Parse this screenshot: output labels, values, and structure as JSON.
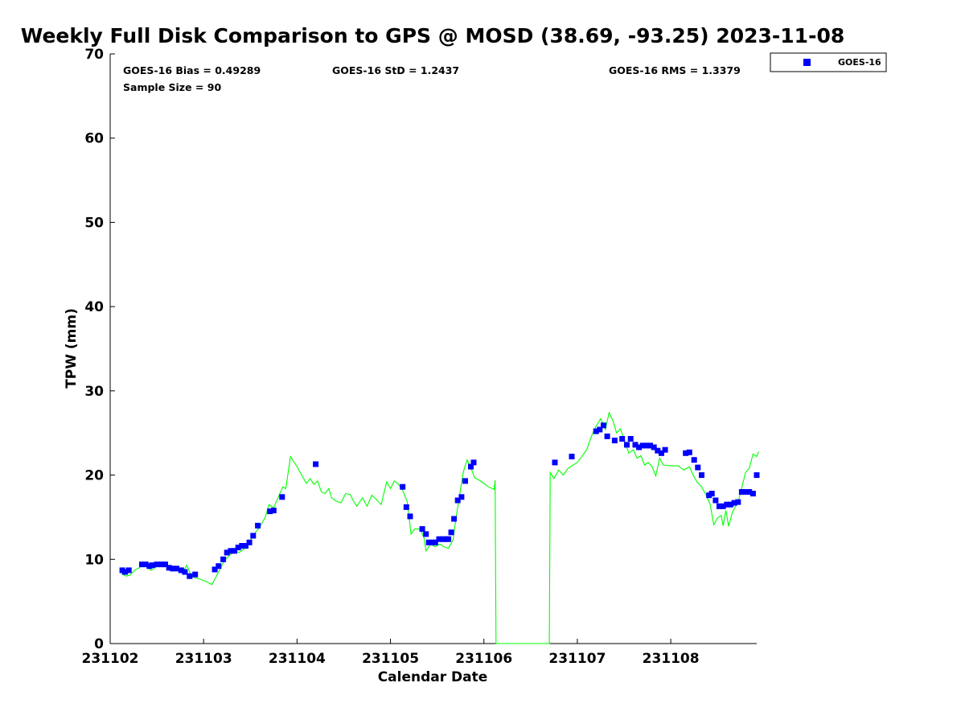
{
  "chart_data": {
    "type": "scatter",
    "title": "Weekly Full Disk Comparison to GPS @ MOSD (38.69, -93.25) 2023-11-08",
    "xlabel": "Calendar Date",
    "ylabel": "TPW (mm)",
    "xlim": [
      231102,
      231108.92
    ],
    "ylim": [
      0,
      70
    ],
    "x_ticks": [
      "231102",
      "231103",
      "231104",
      "231105",
      "231106",
      "231107",
      "231108"
    ],
    "y_ticks": [
      "0",
      "10",
      "20",
      "30",
      "40",
      "50",
      "60",
      "70"
    ],
    "grid": false,
    "legend_position": "outside-top-right",
    "stats": {
      "bias": "GOES-16 Bias = 0.49289",
      "std": "GOES-16 StD = 1.2437",
      "rms": "GOES-16 RMS = 1.3379",
      "sample": "Sample Size = 90"
    },
    "colors": {
      "scatter": "#0000ff",
      "line": "#00ff00"
    },
    "series": [
      {
        "name": "GOES-16",
        "kind": "scatter",
        "points": [
          [
            231102.13,
            8.7
          ],
          [
            231102.16,
            8.5
          ],
          [
            231102.2,
            8.7
          ],
          [
            231102.34,
            9.4
          ],
          [
            231102.38,
            9.4
          ],
          [
            231102.42,
            9.2
          ],
          [
            231102.45,
            9.3
          ],
          [
            231102.5,
            9.4
          ],
          [
            231102.55,
            9.4
          ],
          [
            231102.59,
            9.4
          ],
          [
            231102.63,
            9.0
          ],
          [
            231102.67,
            8.9
          ],
          [
            231102.71,
            8.9
          ],
          [
            231102.76,
            8.7
          ],
          [
            231102.8,
            8.5
          ],
          [
            231102.85,
            8.0
          ],
          [
            231102.91,
            8.2
          ],
          [
            231103.12,
            8.8
          ],
          [
            231103.16,
            9.2
          ],
          [
            231103.21,
            10.0
          ],
          [
            231103.25,
            10.8
          ],
          [
            231103.29,
            11.0
          ],
          [
            231103.33,
            11.0
          ],
          [
            231103.37,
            11.4
          ],
          [
            231103.41,
            11.6
          ],
          [
            231103.45,
            11.6
          ],
          [
            231103.49,
            12.0
          ],
          [
            231103.53,
            12.8
          ],
          [
            231103.58,
            14.0
          ],
          [
            231103.71,
            15.7
          ],
          [
            231103.75,
            15.8
          ],
          [
            231103.84,
            17.4
          ],
          [
            231104.2,
            21.3
          ],
          [
            231105.13,
            18.6
          ],
          [
            231105.17,
            16.2
          ],
          [
            231105.21,
            15.1
          ],
          [
            231105.34,
            13.6
          ],
          [
            231105.38,
            13.0
          ],
          [
            231105.41,
            12.0
          ],
          [
            231105.45,
            12.0
          ],
          [
            231105.48,
            12.0
          ],
          [
            231105.52,
            12.4
          ],
          [
            231105.56,
            12.4
          ],
          [
            231105.59,
            12.4
          ],
          [
            231105.62,
            12.4
          ],
          [
            231105.65,
            13.2
          ],
          [
            231105.68,
            14.8
          ],
          [
            231105.72,
            17.0
          ],
          [
            231105.76,
            17.4
          ],
          [
            231105.8,
            19.3
          ],
          [
            231105.86,
            21.0
          ],
          [
            231105.89,
            21.5
          ],
          [
            231106.76,
            21.5
          ],
          [
            231106.94,
            22.2
          ],
          [
            231107.2,
            25.2
          ],
          [
            231107.24,
            25.4
          ],
          [
            231107.28,
            25.9
          ],
          [
            231107.32,
            24.6
          ],
          [
            231107.4,
            24.1
          ],
          [
            231107.48,
            24.3
          ],
          [
            231107.53,
            23.6
          ],
          [
            231107.57,
            24.3
          ],
          [
            231107.62,
            23.6
          ],
          [
            231107.66,
            23.3
          ],
          [
            231107.7,
            23.5
          ],
          [
            231107.74,
            23.5
          ],
          [
            231107.78,
            23.5
          ],
          [
            231107.82,
            23.3
          ],
          [
            231107.86,
            22.9
          ],
          [
            231107.9,
            22.6
          ],
          [
            231107.94,
            23.0
          ],
          [
            231108.16,
            22.6
          ],
          [
            231108.2,
            22.7
          ],
          [
            231108.25,
            21.8
          ],
          [
            231108.29,
            20.9
          ],
          [
            231108.33,
            20.0
          ],
          [
            231108.41,
            17.6
          ],
          [
            231108.44,
            17.8
          ],
          [
            231108.48,
            17.0
          ],
          [
            231108.52,
            16.3
          ],
          [
            231108.56,
            16.3
          ],
          [
            231108.6,
            16.5
          ],
          [
            231108.64,
            16.5
          ],
          [
            231108.68,
            16.7
          ],
          [
            231108.72,
            16.8
          ],
          [
            231108.76,
            18.0
          ],
          [
            231108.8,
            18.0
          ],
          [
            231108.84,
            18.0
          ],
          [
            231108.88,
            17.8
          ],
          [
            231108.92,
            20.0
          ]
        ]
      },
      {
        "kind": "line",
        "points": [
          [
            231102.12,
            8.3
          ],
          [
            231102.17,
            8.0
          ],
          [
            231102.21,
            8.1
          ],
          [
            231102.26,
            8.7
          ],
          [
            231102.31,
            9.0
          ],
          [
            231102.36,
            9.4
          ],
          [
            231102.4,
            9.0
          ],
          [
            231102.44,
            8.7
          ],
          [
            231102.48,
            9.0
          ],
          [
            231102.53,
            9.3
          ],
          [
            231102.57,
            9.2
          ],
          [
            231102.61,
            9.4
          ],
          [
            231102.65,
            9.0
          ],
          [
            231102.7,
            8.8
          ],
          [
            231102.75,
            8.7
          ],
          [
            231102.79,
            8.7
          ],
          [
            231102.82,
            9.3
          ],
          [
            231102.85,
            8.5
          ],
          [
            231102.88,
            7.9
          ],
          [
            231102.95,
            7.7
          ],
          [
            231103.02,
            7.4
          ],
          [
            231103.09,
            7.0
          ],
          [
            231103.16,
            8.5
          ],
          [
            231103.22,
            9.8
          ],
          [
            231103.28,
            10.5
          ],
          [
            231103.33,
            11.0
          ],
          [
            231103.38,
            10.8
          ],
          [
            231103.44,
            11.3
          ],
          [
            231103.48,
            11.9
          ],
          [
            231103.54,
            13.0
          ],
          [
            231103.6,
            13.8
          ],
          [
            231103.66,
            15.0
          ],
          [
            231103.7,
            16.5
          ],
          [
            231103.75,
            16.1
          ],
          [
            231103.8,
            17.4
          ],
          [
            231103.85,
            18.6
          ],
          [
            231103.88,
            18.4
          ],
          [
            231103.93,
            22.2
          ],
          [
            231104.0,
            21.0
          ],
          [
            231104.05,
            20.0
          ],
          [
            231104.1,
            19.0
          ],
          [
            231104.14,
            19.6
          ],
          [
            231104.18,
            18.9
          ],
          [
            231104.22,
            19.3
          ],
          [
            231104.26,
            18.0
          ],
          [
            231104.3,
            17.8
          ],
          [
            231104.34,
            18.4
          ],
          [
            231104.37,
            17.3
          ],
          [
            231104.42,
            16.9
          ],
          [
            231104.47,
            16.7
          ],
          [
            231104.52,
            17.8
          ],
          [
            231104.57,
            17.7
          ],
          [
            231104.6,
            17.0
          ],
          [
            231104.64,
            16.3
          ],
          [
            231104.7,
            17.3
          ],
          [
            231104.75,
            16.3
          ],
          [
            231104.8,
            17.6
          ],
          [
            231104.84,
            17.2
          ],
          [
            231104.9,
            16.5
          ],
          [
            231104.96,
            19.2
          ],
          [
            231105.0,
            18.4
          ],
          [
            231105.04,
            19.3
          ],
          [
            231105.08,
            19.0
          ],
          [
            231105.13,
            18.2
          ],
          [
            231105.18,
            16.8
          ],
          [
            231105.22,
            13.0
          ],
          [
            231105.26,
            13.6
          ],
          [
            231105.32,
            13.6
          ],
          [
            231105.36,
            12.5
          ],
          [
            231105.38,
            11.0
          ],
          [
            231105.43,
            11.8
          ],
          [
            231105.48,
            11.5
          ],
          [
            231105.53,
            11.8
          ],
          [
            231105.57,
            11.5
          ],
          [
            231105.62,
            11.3
          ],
          [
            231105.67,
            12.3
          ],
          [
            231105.7,
            14.8
          ],
          [
            231105.74,
            17.6
          ],
          [
            231105.78,
            20.4
          ],
          [
            231105.82,
            21.8
          ],
          [
            231105.86,
            20.9
          ],
          [
            231105.9,
            19.7
          ],
          [
            231105.95,
            19.4
          ],
          [
            231106.0,
            19.0
          ],
          [
            231106.05,
            18.6
          ],
          [
            231106.11,
            18.3
          ],
          [
            231106.12,
            19.4
          ],
          [
            231106.13,
            0
          ],
          [
            231106.7,
            0
          ],
          [
            231106.71,
            20.3
          ],
          [
            231106.75,
            19.6
          ],
          [
            231106.8,
            20.6
          ],
          [
            231106.85,
            20.0
          ],
          [
            231106.9,
            20.8
          ],
          [
            231107.0,
            21.5
          ],
          [
            231107.1,
            23.0
          ],
          [
            231107.15,
            24.6
          ],
          [
            231107.2,
            25.8
          ],
          [
            231107.25,
            26.7
          ],
          [
            231107.3,
            25.4
          ],
          [
            231107.34,
            27.4
          ],
          [
            231107.38,
            26.5
          ],
          [
            231107.42,
            25.0
          ],
          [
            231107.46,
            25.5
          ],
          [
            231107.5,
            24.3
          ],
          [
            231107.55,
            22.6
          ],
          [
            231107.6,
            23.0
          ],
          [
            231107.64,
            22.0
          ],
          [
            231107.68,
            22.3
          ],
          [
            231107.72,
            21.2
          ],
          [
            231107.76,
            21.5
          ],
          [
            231107.8,
            21.0
          ],
          [
            231107.84,
            19.9
          ],
          [
            231107.88,
            22.0
          ],
          [
            231107.92,
            21.2
          ],
          [
            231108.0,
            21.1
          ],
          [
            231108.08,
            21.1
          ],
          [
            231108.14,
            20.6
          ],
          [
            231108.2,
            21.0
          ],
          [
            231108.24,
            20.0
          ],
          [
            231108.28,
            19.2
          ],
          [
            231108.33,
            18.6
          ],
          [
            231108.37,
            17.8
          ],
          [
            231108.42,
            16.6
          ],
          [
            231108.46,
            14.1
          ],
          [
            231108.5,
            14.9
          ],
          [
            231108.54,
            15.2
          ],
          [
            231108.56,
            14.0
          ],
          [
            231108.59,
            15.8
          ],
          [
            231108.62,
            13.9
          ],
          [
            231108.66,
            15.6
          ],
          [
            231108.72,
            16.8
          ],
          [
            231108.76,
            18.5
          ],
          [
            231108.8,
            20.3
          ],
          [
            231108.84,
            20.8
          ],
          [
            231108.88,
            22.5
          ],
          [
            231108.92,
            22.2
          ],
          [
            231108.94,
            22.8
          ]
        ]
      }
    ]
  }
}
